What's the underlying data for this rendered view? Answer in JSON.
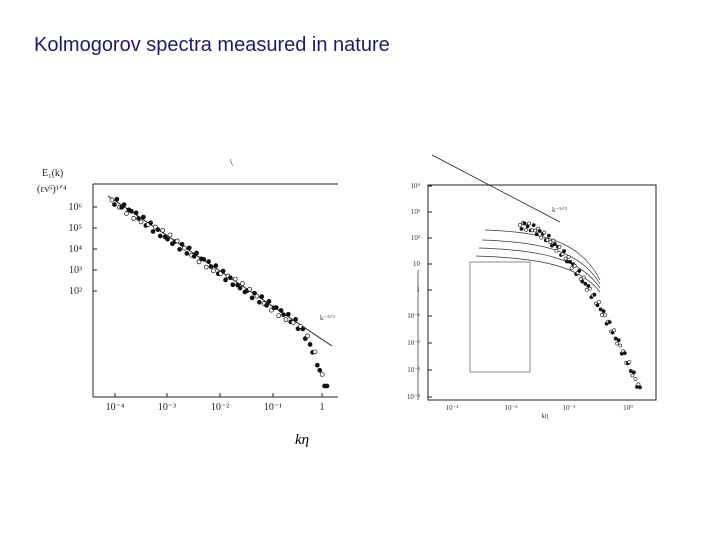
{
  "title": "Kolmogorov spectra measured in nature",
  "x_label": "kη",
  "figures": [
    {
      "y_label": "E₁(k)",
      "y_unit": "(εν⁵)¹ᐟ⁴",
      "y_ticks": [
        "10⁶",
        "10⁵",
        "10⁴",
        "10³",
        "10²"
      ],
      "x_ticks": [
        "10⁻⁴",
        "10⁻³",
        "10⁻²",
        "10⁻¹",
        "1"
      ],
      "annotation": "k⁻⁵ᐟ³"
    },
    {
      "y_ticks": [
        "10⁴",
        "10³",
        "10²",
        "10",
        "1",
        "10⁻¹",
        "10⁻²",
        "10⁻³",
        "10⁻⁴"
      ],
      "x_ticks": [
        "10⁻³",
        "10⁻²",
        "10⁻¹",
        "10⁰"
      ],
      "x_axis_label": "kη",
      "annotation": "k⁻⁵ᐟ³"
    }
  ]
}
